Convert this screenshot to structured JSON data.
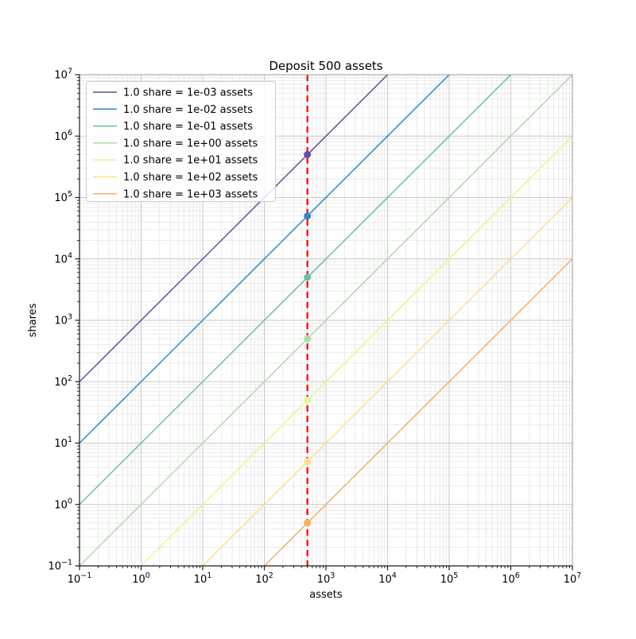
{
  "chart_data": {
    "type": "line",
    "title": "Deposit 500 assets",
    "xlabel": "assets",
    "ylabel": "shares",
    "x_scale": "log",
    "y_scale": "log",
    "xlim": [
      0.1,
      10000000
    ],
    "ylim": [
      0.1,
      10000000
    ],
    "x_tick_exponents": [
      -1,
      0,
      1,
      2,
      3,
      4,
      5,
      6,
      7
    ],
    "y_tick_exponents": [
      -1,
      0,
      1,
      2,
      3,
      4,
      5,
      6,
      7
    ],
    "grid": "both-major-and-minor",
    "legend_position": "upper-left",
    "deposit_assets": 500,
    "vline": {
      "x": 500,
      "color": "#ff0000",
      "linestyle": "dashed"
    },
    "series": [
      {
        "label": "1.0 share = 1e-03 assets",
        "rate_assets_per_share": 0.001,
        "color": "#5e4fa2",
        "point": {
          "assets": 500,
          "shares": 500000
        }
      },
      {
        "label": "1.0 share = 1e-02 assets",
        "rate_assets_per_share": 0.01,
        "color": "#3288bd",
        "point": {
          "assets": 500,
          "shares": 50000
        }
      },
      {
        "label": "1.0 share = 1e-01 assets",
        "rate_assets_per_share": 0.1,
        "color": "#66c2a5",
        "point": {
          "assets": 500,
          "shares": 5000
        }
      },
      {
        "label": "1.0 share = 1e+00 assets",
        "rate_assets_per_share": 1,
        "color": "#abdda4",
        "point": {
          "assets": 500,
          "shares": 500
        }
      },
      {
        "label": "1.0 share = 1e+01 assets",
        "rate_assets_per_share": 10,
        "color": "#e6f598",
        "point": {
          "assets": 500,
          "shares": 50
        }
      },
      {
        "label": "1.0 share = 1e+02 assets",
        "rate_assets_per_share": 100,
        "color": "#fee08b",
        "point": {
          "assets": 500,
          "shares": 5
        }
      },
      {
        "label": "1.0 share = 1e+03 assets",
        "rate_assets_per_share": 1000,
        "color": "#fdae61",
        "point": {
          "assets": 500,
          "shares": 0.5
        }
      }
    ],
    "style": {
      "major_grid_color": "#c8c8c8",
      "minor_grid_color": "#e5e5e5",
      "spine_dark_color": "#1a1a1a",
      "spine_light_color": "#9a9a9a",
      "legend_border_color": "#cccccc",
      "line_width": 1.5,
      "marker_radius": 4.5
    }
  }
}
